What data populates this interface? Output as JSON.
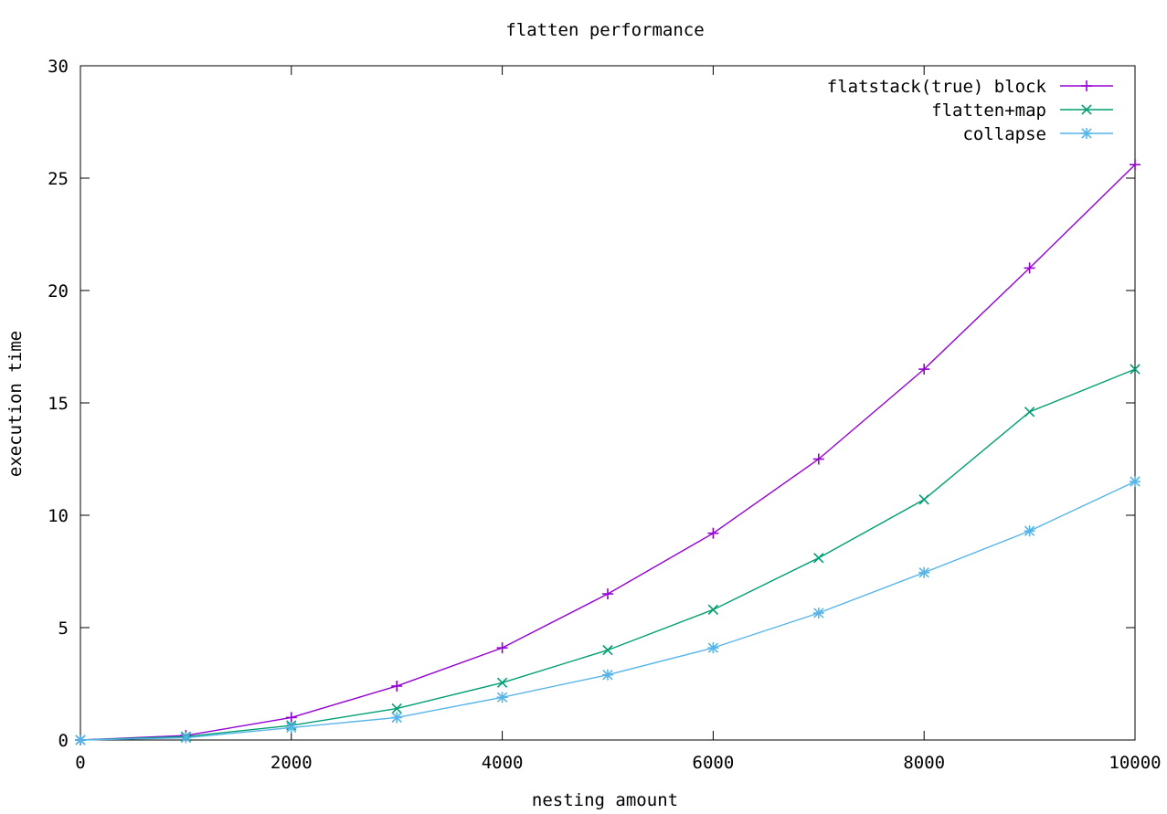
{
  "chart_data": {
    "type": "line",
    "title": "flatten performance",
    "xlabel": "nesting amount",
    "ylabel": "execution time",
    "x": [
      0,
      1000,
      2000,
      3000,
      4000,
      5000,
      6000,
      7000,
      8000,
      9000,
      10000
    ],
    "xlim": [
      0,
      10000
    ],
    "ylim": [
      0,
      30
    ],
    "xticks": [
      0,
      2000,
      4000,
      6000,
      8000,
      10000
    ],
    "yticks": [
      0,
      5,
      10,
      15,
      20,
      25,
      30
    ],
    "grid": false,
    "legend_position": "top-right",
    "series": [
      {
        "name": "flatstack(true) block",
        "color": "#9400d3",
        "marker": "plus",
        "values": [
          0.0,
          0.2,
          1.0,
          2.4,
          4.1,
          6.5,
          9.2,
          12.5,
          16.5,
          21.0,
          25.6
        ]
      },
      {
        "name": "flatten+map",
        "color": "#009e73",
        "marker": "cross",
        "values": [
          0.0,
          0.15,
          0.65,
          1.4,
          2.55,
          4.0,
          5.8,
          8.1,
          10.7,
          14.6,
          16.5
        ]
      },
      {
        "name": "collapse",
        "color": "#56b4e9",
        "marker": "star",
        "values": [
          0.0,
          0.1,
          0.55,
          1.0,
          1.9,
          2.9,
          4.1,
          5.65,
          7.45,
          9.3,
          11.5
        ]
      }
    ]
  }
}
